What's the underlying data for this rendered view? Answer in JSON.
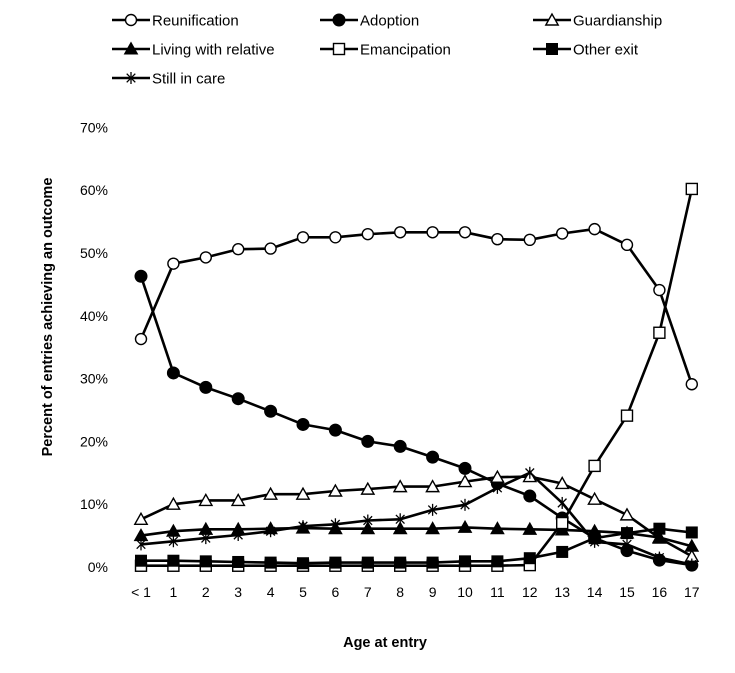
{
  "chart_data": {
    "type": "line",
    "title": "",
    "xlabel": "Age at entry",
    "ylabel": "Percent of entries achieving an outcome",
    "categories": [
      "< 1",
      "1",
      "2",
      "3",
      "4",
      "5",
      "6",
      "7",
      "8",
      "9",
      "10",
      "11",
      "12",
      "13",
      "14",
      "15",
      "16",
      "17"
    ],
    "yticks": [
      "0%",
      "10%",
      "20%",
      "30%",
      "40%",
      "50%",
      "60%",
      "70%"
    ],
    "ylim": [
      0,
      70
    ],
    "grid": false,
    "legend_position": "top",
    "series": [
      {
        "name": "Reunification",
        "marker": "circle-open",
        "values": [
          36.3,
          48.3,
          49.3,
          50.6,
          50.7,
          52.5,
          52.5,
          53.0,
          53.3,
          53.3,
          53.3,
          52.2,
          52.1,
          53.1,
          53.8,
          51.3,
          44.1,
          29.1
        ]
      },
      {
        "name": "Adoption",
        "marker": "circle-filled",
        "values": [
          46.3,
          30.9,
          28.6,
          26.8,
          24.8,
          22.7,
          21.8,
          20.0,
          19.2,
          17.5,
          15.7,
          13.3,
          11.3,
          7.8,
          4.6,
          2.6,
          1.1,
          0.3
        ]
      },
      {
        "name": "Guardianship",
        "marker": "triangle-open",
        "values": [
          7.6,
          10.0,
          10.6,
          10.6,
          11.6,
          11.6,
          12.1,
          12.4,
          12.8,
          12.8,
          13.6,
          14.3,
          14.4,
          13.3,
          10.8,
          8.3,
          4.6,
          1.7
        ]
      },
      {
        "name": "Living with relative",
        "marker": "triangle-filled",
        "values": [
          5.0,
          5.7,
          6.0,
          6.0,
          6.1,
          6.2,
          6.1,
          6.1,
          6.1,
          6.1,
          6.3,
          6.1,
          6.0,
          5.9,
          5.7,
          5.4,
          4.7,
          3.3
        ]
      },
      {
        "name": "Emancipation",
        "marker": "square-open",
        "values": [
          0.2,
          0.2,
          0.2,
          0.2,
          0.2,
          0.2,
          0.2,
          0.2,
          0.2,
          0.2,
          0.2,
          0.2,
          0.3,
          7.0,
          16.1,
          24.1,
          37.3,
          60.2
        ]
      },
      {
        "name": "Other exit",
        "marker": "square-filled",
        "values": [
          1.0,
          1.0,
          0.9,
          0.8,
          0.7,
          0.6,
          0.7,
          0.7,
          0.7,
          0.7,
          0.9,
          0.9,
          1.4,
          2.4,
          4.6,
          5.4,
          6.1,
          5.5
        ]
      },
      {
        "name": "Still in care",
        "marker": "asterisk",
        "values": [
          3.6,
          4.1,
          4.6,
          5.1,
          5.7,
          6.5,
          6.8,
          7.4,
          7.6,
          9.1,
          9.9,
          12.6,
          15.0,
          10.2,
          4.0,
          3.6,
          1.5,
          0.4
        ]
      }
    ]
  }
}
